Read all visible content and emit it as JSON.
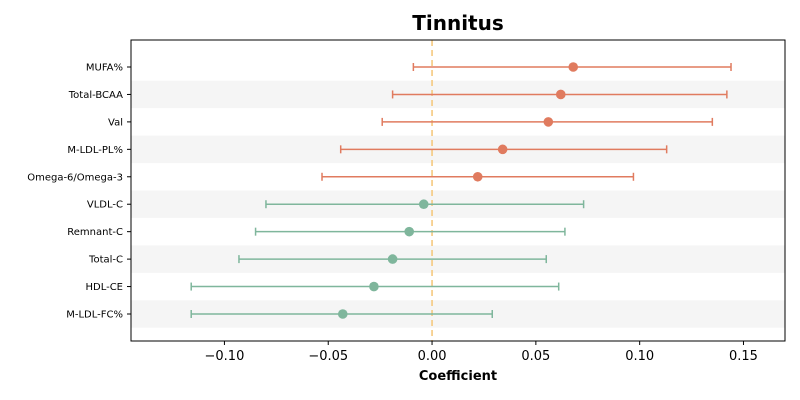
{
  "chart_data": {
    "type": "scatter",
    "subtype": "forest-plot",
    "title": "Tinnitus",
    "xlabel": "Coefficient",
    "ylabel": "",
    "xlim": [
      -0.145,
      0.17
    ],
    "xticks": [
      -0.1,
      -0.05,
      0.0,
      0.05,
      0.1,
      0.15
    ],
    "xtick_labels": [
      "−0.10",
      "−0.05",
      "0.00",
      "0.05",
      "0.10",
      "0.15"
    ],
    "reference_line": 0.0,
    "grid": false,
    "row_striping": true,
    "colors": {
      "positive": "#E07B5F",
      "negative": "#7FB69C",
      "reference_line": "#F5C97F",
      "stripe": "#F5F5F5",
      "axis": "#000000"
    },
    "rows": [
      {
        "label": "MUFA%",
        "estimate": 0.068,
        "lower": -0.009,
        "upper": 0.144,
        "group": "positive"
      },
      {
        "label": "Total-BCAA",
        "estimate": 0.062,
        "lower": -0.019,
        "upper": 0.142,
        "group": "positive"
      },
      {
        "label": "Val",
        "estimate": 0.056,
        "lower": -0.024,
        "upper": 0.135,
        "group": "positive"
      },
      {
        "label": "M-LDL-PL%",
        "estimate": 0.034,
        "lower": -0.044,
        "upper": 0.113,
        "group": "positive"
      },
      {
        "label": "Omega-6/Omega-3",
        "estimate": 0.022,
        "lower": -0.053,
        "upper": 0.097,
        "group": "positive"
      },
      {
        "label": "VLDL-C",
        "estimate": -0.004,
        "lower": -0.08,
        "upper": 0.073,
        "group": "negative"
      },
      {
        "label": "Remnant-C",
        "estimate": -0.011,
        "lower": -0.085,
        "upper": 0.064,
        "group": "negative"
      },
      {
        "label": "Total-C",
        "estimate": -0.019,
        "lower": -0.093,
        "upper": 0.055,
        "group": "negative"
      },
      {
        "label": "HDL-CE",
        "estimate": -0.028,
        "lower": -0.116,
        "upper": 0.061,
        "group": "negative"
      },
      {
        "label": "M-LDL-FC%",
        "estimate": -0.043,
        "lower": -0.116,
        "upper": 0.029,
        "group": "negative"
      }
    ]
  }
}
